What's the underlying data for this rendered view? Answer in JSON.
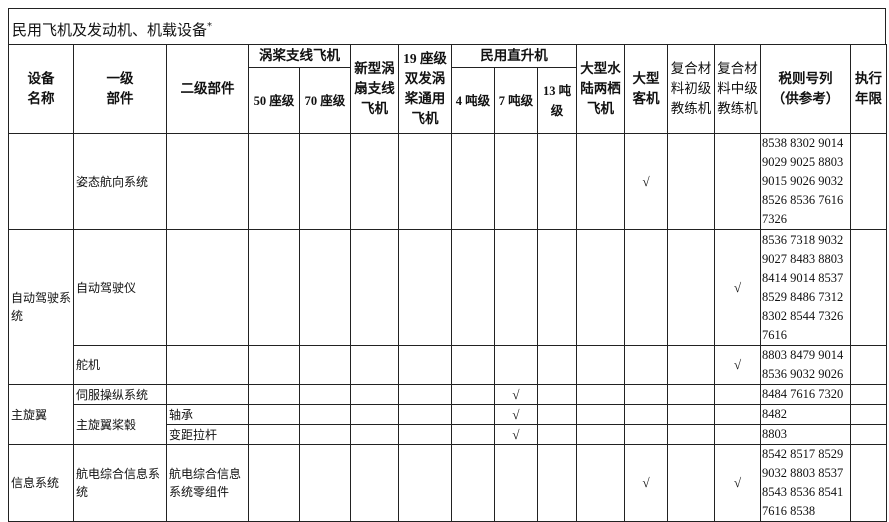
{
  "title": "民用飞机及发动机、机载设备",
  "title_mark": "*",
  "headers": {
    "device": "设备名称",
    "level1": "一级部件",
    "level2": "二级部件",
    "turboprop_group": "涡桨支线飞机",
    "seat50": "50 座级",
    "seat70": "70 座级",
    "turbofan": "新型涡扇支线飞机",
    "seat19": "19 座级双发涡桨通用飞机",
    "heli_group": "民用直升机",
    "t4": "4 吨级",
    "t7": "7 吨级",
    "t13": "13 吨级",
    "amphibian": "大型水陆两栖飞机",
    "airliner": "大型客机",
    "trainer_basic": "复合材料初级教练机",
    "trainer_mid": "复合材料中级教练机",
    "tariff": "税则号列（供参考）",
    "period": "执行年限"
  },
  "check_mark": "√",
  "rows": [
    {
      "device": "",
      "level1": "姿态航向系统",
      "level2": "",
      "checks": [
        "airliner"
      ],
      "tariff": "8538 8302 9014 9029 9025 8803 9015 9026 9032 8526 8536 7616 7326",
      "period": ""
    },
    {
      "device": "自动驾驶系统",
      "device_rowspan": 2,
      "level1": "自动驾驶仪",
      "level2": "",
      "checks": [
        "trainer_mid"
      ],
      "tariff": "8536 7318 9032 9027 8483 8803 8414 9014 8537 8529 8486 7312 8302 8544 7326 7616",
      "period": ""
    },
    {
      "level1": "舵机",
      "level2": "",
      "checks": [
        "trainer_mid"
      ],
      "tariff": "8803 8479 9014 8536 9032 9026",
      "period": ""
    },
    {
      "device": "主旋翼",
      "device_rowspan": 3,
      "level1": "伺服操纵系统",
      "level2": "",
      "checks": [
        "t7"
      ],
      "tariff": "8484 7616 7320",
      "period": ""
    },
    {
      "level1": "主旋翼桨毂",
      "level1_rowspan": 2,
      "level2": "轴承",
      "checks": [
        "t7"
      ],
      "tariff": "8482",
      "period": ""
    },
    {
      "level2": "变距拉杆",
      "checks": [
        "t7"
      ],
      "tariff": "8803",
      "period": ""
    },
    {
      "device": "信息系统",
      "level1": "航电综合信息系统",
      "level2": "航电综合信息系统零组件",
      "checks": [
        "airliner",
        "trainer_mid"
      ],
      "tariff": "8542 8517 8529 9032 8803 8537 8543 8536 8541 7616 8538",
      "period": ""
    }
  ]
}
